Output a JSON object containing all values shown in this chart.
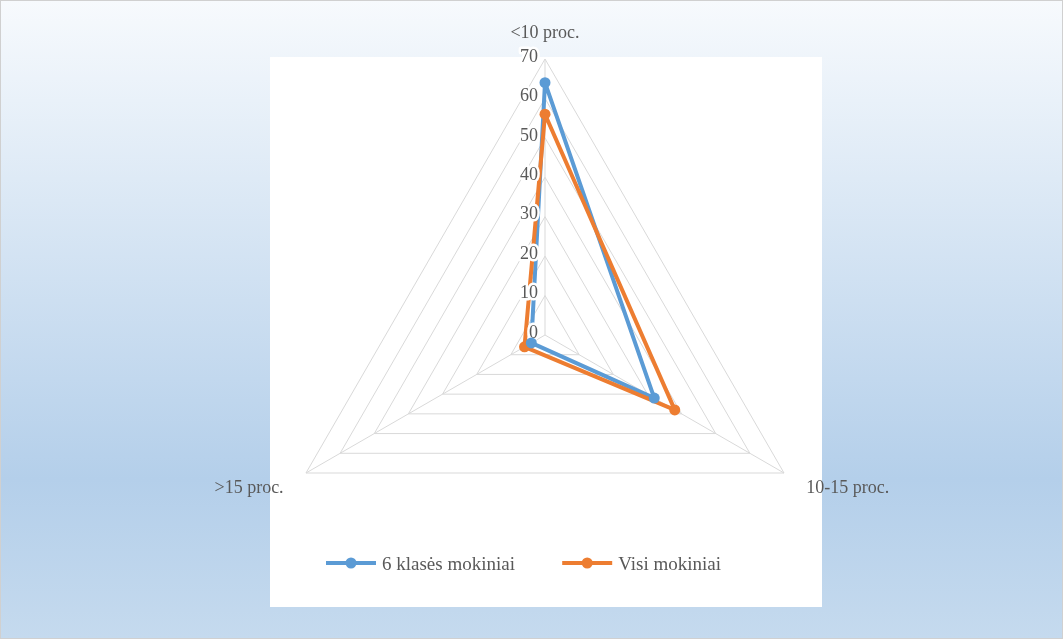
{
  "chart_data": {
    "type": "radar",
    "categories": [
      "<10 proc.",
      "10-15 proc.",
      ">15 proc."
    ],
    "series": [
      {
        "name": "6 klasės mokiniai",
        "color": "#5b9bd5",
        "values": [
          64,
          32,
          4
        ]
      },
      {
        "name": "Visi mokiniai",
        "color": "#ed7d31",
        "values": [
          56,
          38,
          6
        ]
      }
    ],
    "ylim": [
      0,
      70
    ],
    "yticks": [
      0,
      10,
      20,
      30,
      40,
      50,
      60,
      70
    ],
    "grid": true,
    "legend": "bottom",
    "marker": "circle"
  }
}
